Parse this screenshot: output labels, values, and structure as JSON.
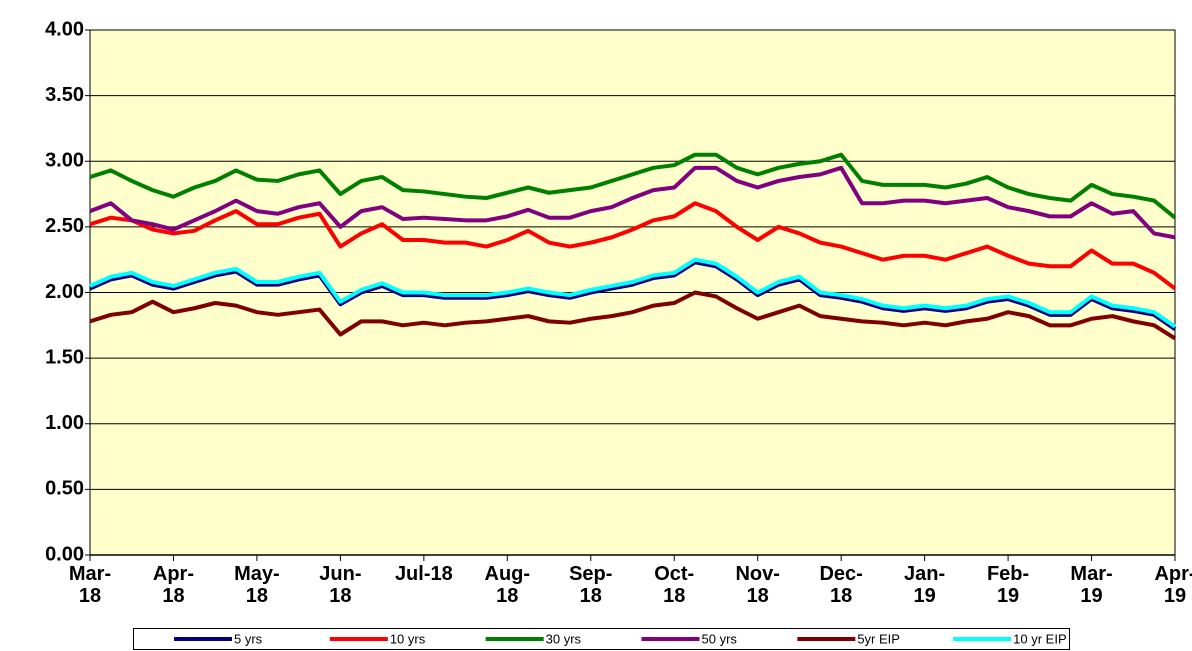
{
  "chart_data": {
    "type": "line",
    "categories": [
      "Mar-18",
      null,
      null,
      null,
      "Apr-18",
      null,
      null,
      null,
      "May-18",
      null,
      null,
      null,
      "Jun-18",
      null,
      null,
      null,
      "Jul-18",
      null,
      null,
      null,
      "Aug-18",
      null,
      null,
      null,
      "Sep-18",
      null,
      null,
      null,
      "Oct-18",
      null,
      null,
      null,
      "Nov-18",
      null,
      null,
      null,
      "Dec-18",
      null,
      null,
      null,
      "Jan-19",
      null,
      null,
      null,
      "Feb-19",
      null,
      null,
      null,
      "Mar-19",
      null,
      null,
      null,
      "Apr-19"
    ],
    "ylim": [
      0,
      4
    ],
    "yticks": [
      {
        "value": 0,
        "label": "0.00"
      },
      {
        "value": 0.5,
        "label": "0.50"
      },
      {
        "value": 1,
        "label": "1.00"
      },
      {
        "value": 1.5,
        "label": "1.50"
      },
      {
        "value": 2,
        "label": "2.00"
      },
      {
        "value": 2.5,
        "label": "2.50"
      },
      {
        "value": 3,
        "label": "3.00"
      },
      {
        "value": 3.5,
        "label": "3.50"
      },
      {
        "value": 4,
        "label": "4.00"
      }
    ],
    "grid": true,
    "legend": "bottom",
    "series": [
      {
        "name": "5 yrs",
        "color": "#000080",
        "values": [
          2.03,
          2.1,
          2.13,
          2.06,
          2.03,
          2.08,
          2.13,
          2.16,
          2.06,
          2.06,
          2.1,
          2.13,
          1.91,
          2.0,
          2.05,
          1.98,
          1.98,
          1.96,
          1.96,
          1.96,
          1.98,
          2.01,
          1.98,
          1.96,
          2.0,
          2.03,
          2.06,
          2.11,
          2.13,
          2.23,
          2.2,
          2.1,
          1.98,
          2.06,
          2.1,
          1.98,
          1.96,
          1.93,
          1.88,
          1.86,
          1.88,
          1.86,
          1.88,
          1.93,
          1.95,
          1.9,
          1.83,
          1.83,
          1.95,
          1.88,
          1.86,
          1.83,
          1.72
        ]
      },
      {
        "name": "10 yrs",
        "color": "#ff0000",
        "values": [
          2.52,
          2.57,
          2.55,
          2.48,
          2.45,
          2.47,
          2.55,
          2.62,
          2.52,
          2.52,
          2.57,
          2.6,
          2.35,
          2.45,
          2.52,
          2.4,
          2.4,
          2.38,
          2.38,
          2.35,
          2.4,
          2.47,
          2.38,
          2.35,
          2.38,
          2.42,
          2.48,
          2.55,
          2.58,
          2.68,
          2.62,
          2.5,
          2.4,
          2.5,
          2.45,
          2.38,
          2.35,
          2.3,
          2.25,
          2.28,
          2.28,
          2.25,
          2.3,
          2.35,
          2.28,
          2.22,
          2.2,
          2.2,
          2.32,
          2.22,
          2.22,
          2.15,
          2.03
        ]
      },
      {
        "name": "30 yrs",
        "color": "#008000",
        "values": [
          2.88,
          2.93,
          2.85,
          2.78,
          2.73,
          2.8,
          2.85,
          2.93,
          2.86,
          2.85,
          2.9,
          2.93,
          2.75,
          2.85,
          2.88,
          2.78,
          2.77,
          2.75,
          2.73,
          2.72,
          2.76,
          2.8,
          2.76,
          2.78,
          2.8,
          2.85,
          2.9,
          2.95,
          2.97,
          3.05,
          3.05,
          2.95,
          2.9,
          2.95,
          2.98,
          3.0,
          3.05,
          2.85,
          2.82,
          2.82,
          2.82,
          2.8,
          2.83,
          2.88,
          2.8,
          2.75,
          2.72,
          2.7,
          2.82,
          2.75,
          2.73,
          2.7,
          2.57
        ]
      },
      {
        "name": "50 yrs",
        "color": "#800080",
        "values": [
          2.62,
          2.68,
          2.55,
          2.52,
          2.48,
          2.55,
          2.62,
          2.7,
          2.62,
          2.6,
          2.65,
          2.68,
          2.5,
          2.62,
          2.65,
          2.56,
          2.57,
          2.56,
          2.55,
          2.55,
          2.58,
          2.63,
          2.57,
          2.57,
          2.62,
          2.65,
          2.72,
          2.78,
          2.8,
          2.95,
          2.95,
          2.85,
          2.8,
          2.85,
          2.88,
          2.9,
          2.95,
          2.68,
          2.68,
          2.7,
          2.7,
          2.68,
          2.7,
          2.72,
          2.65,
          2.62,
          2.58,
          2.58,
          2.68,
          2.6,
          2.62,
          2.45,
          2.42
        ]
      },
      {
        "name": "5yr EIP",
        "color": "#800000",
        "values": [
          1.78,
          1.83,
          1.85,
          1.93,
          1.85,
          1.88,
          1.92,
          1.9,
          1.85,
          1.83,
          1.85,
          1.87,
          1.68,
          1.78,
          1.78,
          1.75,
          1.77,
          1.75,
          1.77,
          1.78,
          1.8,
          1.82,
          1.78,
          1.77,
          1.8,
          1.82,
          1.85,
          1.9,
          1.92,
          2.0,
          1.97,
          1.88,
          1.8,
          1.85,
          1.9,
          1.82,
          1.8,
          1.78,
          1.77,
          1.75,
          1.77,
          1.75,
          1.78,
          1.8,
          1.85,
          1.82,
          1.75,
          1.75,
          1.8,
          1.82,
          1.78,
          1.75,
          1.65
        ]
      },
      {
        "name": "10 yr EIP",
        "color": "#00ffff",
        "values": [
          2.05,
          2.12,
          2.15,
          2.08,
          2.05,
          2.1,
          2.15,
          2.18,
          2.08,
          2.08,
          2.12,
          2.15,
          1.93,
          2.02,
          2.07,
          2.0,
          2.0,
          1.98,
          1.98,
          1.98,
          2.0,
          2.03,
          2.0,
          1.98,
          2.02,
          2.05,
          2.08,
          2.13,
          2.15,
          2.25,
          2.22,
          2.12,
          2.0,
          2.08,
          2.12,
          2.0,
          1.98,
          1.95,
          1.9,
          1.88,
          1.9,
          1.88,
          1.9,
          1.95,
          1.97,
          1.92,
          1.85,
          1.85,
          1.97,
          1.9,
          1.88,
          1.85,
          1.74
        ]
      }
    ]
  }
}
